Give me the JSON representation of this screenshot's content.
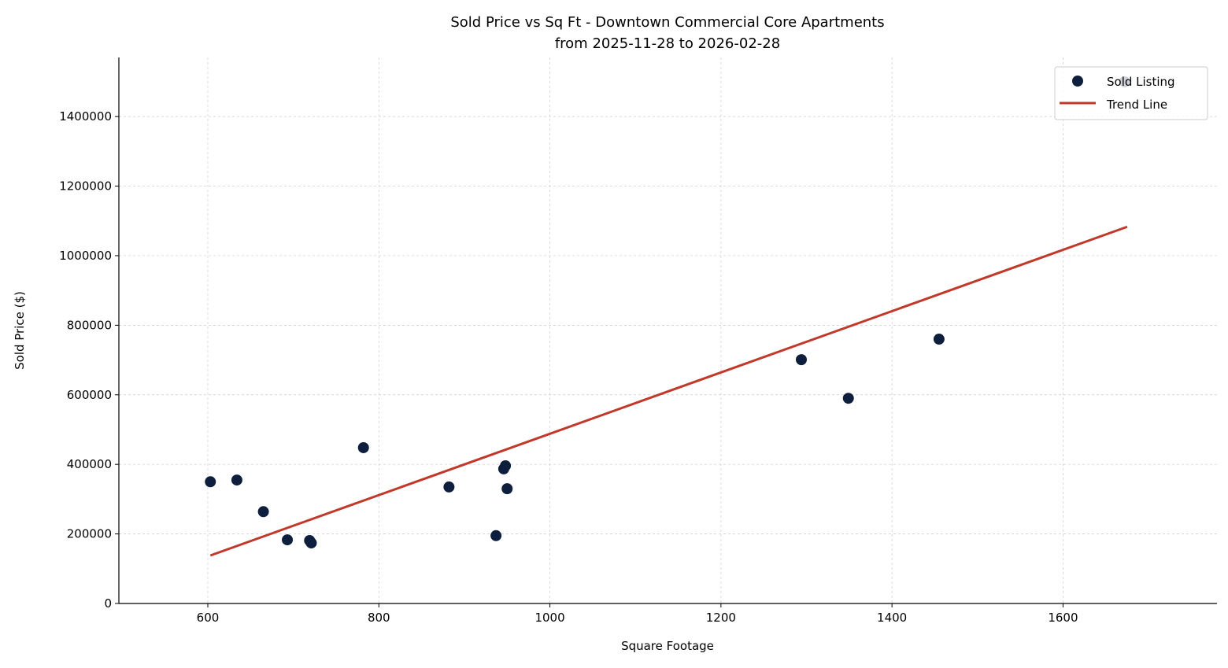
{
  "chart_data": {
    "type": "scatter",
    "title": "Sold Price vs Sq Ft - Downtown Commercial Core Apartments",
    "subtitle": "from 2025-11-28 to 2026-02-28",
    "xlabel": "Square Footage",
    "ylabel": "Sold Price ($)",
    "xlim": [
      496,
      1780
    ],
    "ylim": [
      0,
      1570000
    ],
    "xticks": [
      600,
      800,
      1000,
      1200,
      1400,
      1600
    ],
    "yticks": [
      0,
      200000,
      400000,
      600000,
      800000,
      1000000,
      1200000,
      1400000
    ],
    "grid": true,
    "legend_position": "top-right",
    "series": [
      {
        "name": "Sold Listing",
        "kind": "scatter",
        "color": "#0d1f3c",
        "points": [
          [
            603,
            350000
          ],
          [
            634,
            355000
          ],
          [
            665,
            264000
          ],
          [
            693,
            183000
          ],
          [
            719,
            181000
          ],
          [
            721,
            174000
          ],
          [
            782,
            448000
          ],
          [
            882,
            335000
          ],
          [
            937,
            195000
          ],
          [
            946,
            387000
          ],
          [
            948,
            396000
          ],
          [
            950,
            330000
          ],
          [
            1294,
            701000
          ],
          [
            1349,
            590000
          ],
          [
            1455,
            760000
          ],
          [
            1672,
            1500000
          ]
        ]
      },
      {
        "name": "Trend Line",
        "kind": "line",
        "color": "#c0392b",
        "points": [
          [
            603,
            138000
          ],
          [
            1675,
            1083000
          ]
        ]
      }
    ]
  }
}
